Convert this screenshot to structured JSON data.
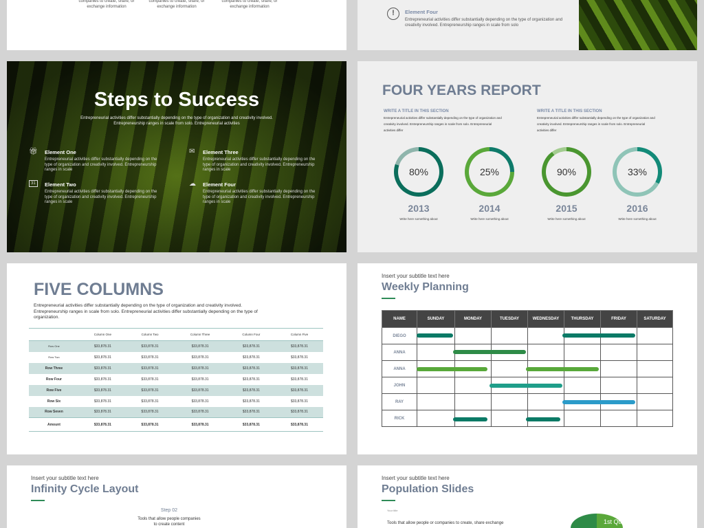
{
  "slide_top_left": {
    "items": [
      "companies to create, share, or exchange information",
      "companies to create, share, or exchange information",
      "companies to create, share, or exchange information"
    ]
  },
  "slide_top_right": {
    "title": "Element Four",
    "text": "Entrepreneurial activities differ substantially depending on the type of organization and creativity involved. Entrepreneurship ranges in scale from solo",
    "icon": "exclamation-circle-icon"
  },
  "steps": {
    "title": "Steps to Success",
    "subtitle": "Entrepreneurial activities differ substantially depending on the type of organization and creativity involved. Entrepreneurship ranges in scale from solo. Entrepreneurial activities",
    "elements": [
      {
        "title": "Element One",
        "icon": "gift-icon",
        "text": "Entrepreneurial activities differ substantially depending on the type of organization and creativity involved. Entrepreneurship ranges in scale"
      },
      {
        "title": "Element Two",
        "icon": "calendar-icon",
        "text": "Entrepreneurial activities differ substantially depending on the type of organization and creativity involved. Entrepreneurship ranges in scale"
      },
      {
        "title": "Element Three",
        "icon": "envelope-icon",
        "text": "Entrepreneurial activities differ substantially depending on the type of organization and creativity involved. Entrepreneurship ranges in scale"
      },
      {
        "title": "Element Four",
        "icon": "cloud-download-icon",
        "text": "Entrepreneurial activities differ substantially depending on the type of organization and creativity involved. Entrepreneurship ranges in scale"
      }
    ]
  },
  "report": {
    "title": "FOUR YEARS REPORT",
    "sections": [
      {
        "title": "WRITE A TITLE IN THIS SECTION",
        "text": "Entrepreneurial activities differ substantially depending on the type of organization and creativity involved. Entrepreneurship ranges in scale from solo. Entrepreneurial activities differ"
      },
      {
        "title": "WRITE A TITLE IN THIS SECTION",
        "text": "Entrepreneurial activities differ substantially depending on the type of organization and creativity involved. Entrepreneurship ranges in scale from solo. Entrepreneurial activities differ"
      }
    ],
    "rings": [
      {
        "label": "80%",
        "value": 80,
        "year": "2013",
        "caption": "Write here something about",
        "color": "#0b6e5c",
        "track": "#8fb5ac"
      },
      {
        "label": "25%",
        "value": 25,
        "year": "2014",
        "caption": "Write here something about",
        "color": "#0e7a6a",
        "track": "#5aa83a"
      },
      {
        "label": "90%",
        "value": 90,
        "year": "2015",
        "caption": "Write here something about",
        "color": "#4a9630",
        "track": "#a3cc90"
      },
      {
        "label": "33%",
        "value": 33,
        "year": "2016",
        "caption": "Write here something about",
        "color": "#138a78",
        "track": "#8fc4b7"
      }
    ]
  },
  "five": {
    "title": "FIVE COLUMNS",
    "text": "Entrepreneurial activities differ substantially depending on the type of organization and creativity involved. Entrepreneurship ranges in scale from solo. Entrepreneurial activities differ substantially depending on the type of organization.",
    "columns": [
      "",
      "Column One",
      "Column Two",
      "Column Three",
      "Column Four",
      "Column Five"
    ],
    "rows": [
      [
        "Row One",
        "$33,878.31",
        "$33,878.31",
        "$33,878.31",
        "$33,878.31",
        "$33,878.31"
      ],
      [
        "Row Two",
        "$33,878.31",
        "$33,878.31",
        "$33,878.31",
        "$33,878.31",
        "$33,878.31"
      ],
      [
        "Row Three",
        "$33,878.31",
        "$33,878.31",
        "$33,878.31",
        "$33,878.31",
        "$33,878.31"
      ],
      [
        "Row Four",
        "$33,878.31",
        "$33,878.31",
        "$33,878.31",
        "$33,878.31",
        "$33,878.31"
      ],
      [
        "Row Five",
        "$33,878.31",
        "$33,878.31",
        "$33,878.31",
        "$33,878.31",
        "$33,878.31"
      ],
      [
        "Row Six",
        "$33,878.31",
        "$33,878.31",
        "$33,878.31",
        "$33,878.31",
        "$33,878.31"
      ],
      [
        "Row Seven",
        "$33,878.31",
        "$33,878.31",
        "$33,878.31",
        "$33,878.31",
        "$33,878.31"
      ],
      [
        "Amount",
        "$33,878.31",
        "$33,878.31",
        "$33,878.31",
        "$33,878.31",
        "$33,878.31"
      ]
    ]
  },
  "weekly": {
    "subtitle": "Insert your subtitle text here",
    "title": "Weekly Planning",
    "columns": [
      "NAME",
      "SUNDAY",
      "MONDAY",
      "TUESDAY",
      "WEDNESDAY",
      "THURSDAY",
      "FRIDAY",
      "SATURDAY"
    ],
    "rows": [
      {
        "name": "DIEGO",
        "spans": [
          [
            0,
            1,
            "#0b7a66"
          ],
          [
            4,
            6,
            "#0b7a66"
          ]
        ]
      },
      {
        "name": "ANNA",
        "spans": [
          [
            1,
            3,
            "#2e8b47"
          ]
        ]
      },
      {
        "name": "ANNA",
        "spans": [
          [
            0,
            1.95,
            "#58a83a"
          ],
          [
            3,
            5,
            "#58a83a"
          ]
        ]
      },
      {
        "name": "JOHN",
        "spans": [
          [
            2,
            4,
            "#1f9e8a"
          ]
        ]
      },
      {
        "name": "RAY",
        "spans": [
          [
            4,
            6,
            "#2b9bc9"
          ]
        ]
      },
      {
        "name": "RICK",
        "spans": [
          [
            1,
            1.95,
            "#0b7a66"
          ],
          [
            3,
            3.95,
            "#0b7a66"
          ]
        ]
      }
    ]
  },
  "infinity": {
    "subtitle": "Insert your subtitle text here",
    "title": "Infinity Cycle Layout",
    "step": "Step 02",
    "step_text": "Tools that allow people companies to create content"
  },
  "population": {
    "subtitle": "Insert your subtitle text here",
    "title": "Population Slides",
    "your_title": "Your title",
    "text": "Tools that allow people or companies to create, share exchange",
    "pie_label": "1st Qtr"
  }
}
